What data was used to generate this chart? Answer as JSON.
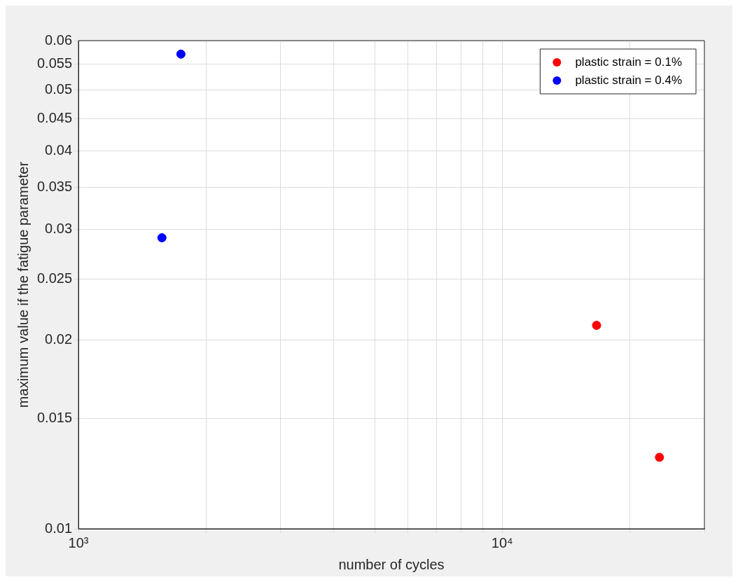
{
  "chart_data": {
    "type": "scatter",
    "xlabel": "number of cycles",
    "ylabel": "maximum value if the fatigue parameter",
    "series": [
      {
        "name": "plastic strain = 0.1%",
        "color": "#ff0000",
        "x": [
          16700,
          23500
        ],
        "values": [
          0.0211,
          0.013
        ]
      },
      {
        "name": "plastic strain = 0.4%",
        "color": "#0000ff",
        "x": [
          1745,
          1574
        ],
        "values": [
          0.0571,
          0.0291
        ]
      }
    ],
    "log": "xy",
    "xlim": [
      1000,
      30000
    ],
    "ylim": [
      0.01,
      0.06
    ],
    "xticks": [
      {
        "value": 1000,
        "label": "10³"
      },
      {
        "value": 2000,
        "label": null
      },
      {
        "value": 3000,
        "label": null
      },
      {
        "value": 4000,
        "label": null
      },
      {
        "value": 5000,
        "label": null
      },
      {
        "value": 6000,
        "label": null
      },
      {
        "value": 7000,
        "label": null
      },
      {
        "value": 8000,
        "label": null
      },
      {
        "value": 9000,
        "label": null
      },
      {
        "value": 10000,
        "label": "10⁴"
      },
      {
        "value": 20000,
        "label": null
      },
      {
        "value": 30000,
        "label": null
      }
    ],
    "yticks": [
      0.01,
      0.015,
      0.02,
      0.025,
      0.03,
      0.035,
      0.04,
      0.045,
      0.05,
      0.055,
      0.06
    ],
    "grid": true,
    "legend": "top right",
    "marker": "circle"
  }
}
